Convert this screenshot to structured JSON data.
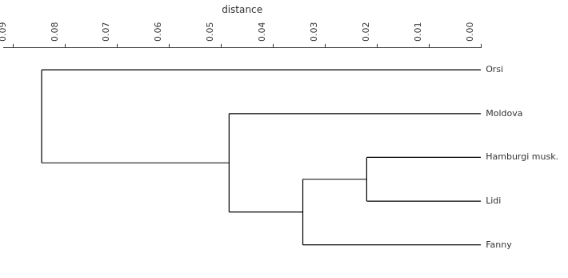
{
  "chart_data": {
    "type": "dendrogram",
    "x_label": "distance",
    "xlim": [
      0.092,
      0
    ],
    "xticks": [
      {
        "value": 0.09,
        "label": "0.09"
      },
      {
        "value": 0.08,
        "label": "0.08"
      },
      {
        "value": 0.07,
        "label": "0.07"
      },
      {
        "value": 0.06,
        "label": "0.06"
      },
      {
        "value": 0.05,
        "label": "0.05"
      },
      {
        "value": 0.04,
        "label": "0.04"
      },
      {
        "value": 0.03,
        "label": "0.03"
      },
      {
        "value": 0.02,
        "label": "0.02"
      },
      {
        "value": 0.01,
        "label": "0.01"
      },
      {
        "value": 0,
        "label": "0.00"
      }
    ],
    "leaves": [
      "Orsi",
      "Moldova",
      "Hamburgi musk.",
      "Lidi",
      "Fanny"
    ],
    "merges": [
      {
        "children": [
          2,
          3
        ],
        "distance": 0.022
      },
      {
        "children": [
          5,
          4
        ],
        "distance": 0.0343
      },
      {
        "children": [
          1,
          6
        ],
        "distance": 0.0485
      },
      {
        "children": [
          0,
          7
        ],
        "distance": 0.0846
      }
    ],
    "color": "#000000",
    "grid": false
  }
}
